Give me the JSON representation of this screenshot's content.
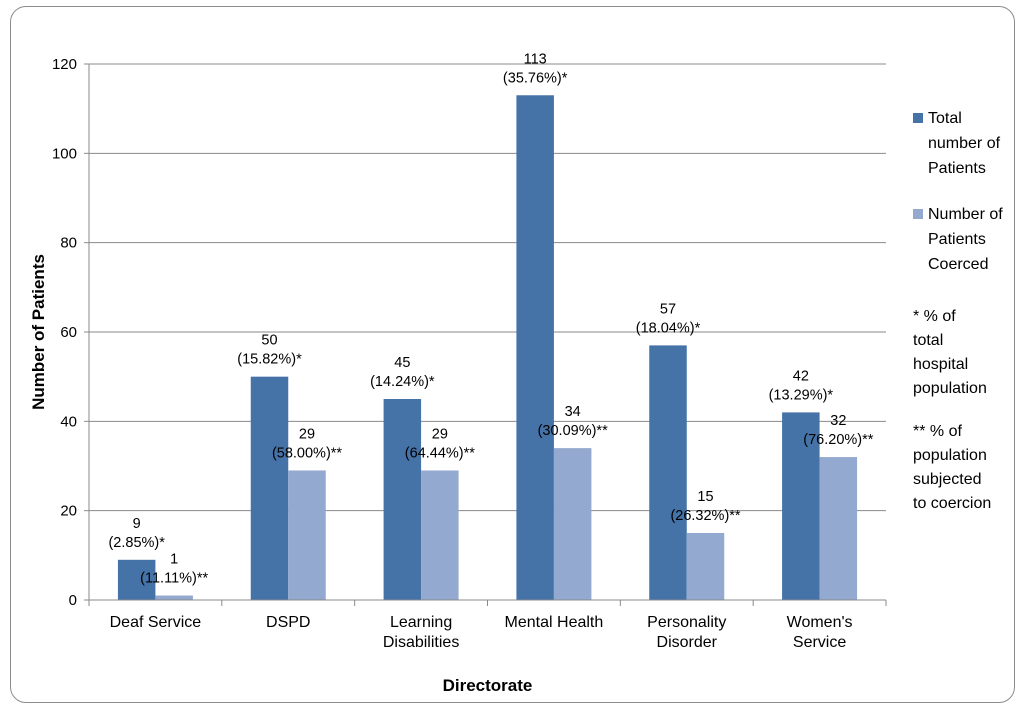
{
  "chart_data": {
    "type": "bar",
    "title": "",
    "xlabel": "Directorate",
    "ylabel": "Number of Patients",
    "ylim": [
      0,
      120
    ],
    "yticks": [
      0,
      20,
      40,
      60,
      80,
      100,
      120
    ],
    "grid": true,
    "legend_position": "right",
    "categories": [
      [
        "Deaf Service"
      ],
      [
        "DSPD"
      ],
      [
        "Learning",
        "Disabilities"
      ],
      [
        "Mental Health"
      ],
      [
        "Personality",
        "Disorder"
      ],
      [
        "Women's",
        "Service"
      ]
    ],
    "series": [
      {
        "name": [
          "Total",
          "number of",
          "Patients"
        ],
        "color": "#4572A7",
        "values": [
          9,
          50,
          45,
          113,
          57,
          42
        ],
        "labels": [
          [
            "9",
            "(2.85%)*"
          ],
          [
            "50",
            "(15.82%)*"
          ],
          [
            "45",
            "(14.24%)*"
          ],
          [
            "113",
            "(35.76%)*"
          ],
          [
            "57",
            "(18.04%)*"
          ],
          [
            "42",
            "(13.29%)*"
          ]
        ]
      },
      {
        "name": [
          "Number of",
          "Patients",
          "Coerced"
        ],
        "color": "#93A9CF",
        "values": [
          1,
          29,
          29,
          34,
          15,
          32
        ],
        "labels": [
          [
            "1",
            "(11.11%)**"
          ],
          [
            "29",
            "(58.00%)**"
          ],
          [
            "29",
            "(64.44%)**"
          ],
          [
            "34",
            "(30.09%)**"
          ],
          [
            "15",
            "(26.32%)**"
          ],
          [
            "32",
            "(76.20%)**"
          ]
        ]
      }
    ],
    "legend_notes": [
      [
        "* % of",
        "total",
        "hospital",
        "population"
      ],
      [
        "** % of",
        "population",
        "subjected",
        "to coercion"
      ]
    ]
  }
}
